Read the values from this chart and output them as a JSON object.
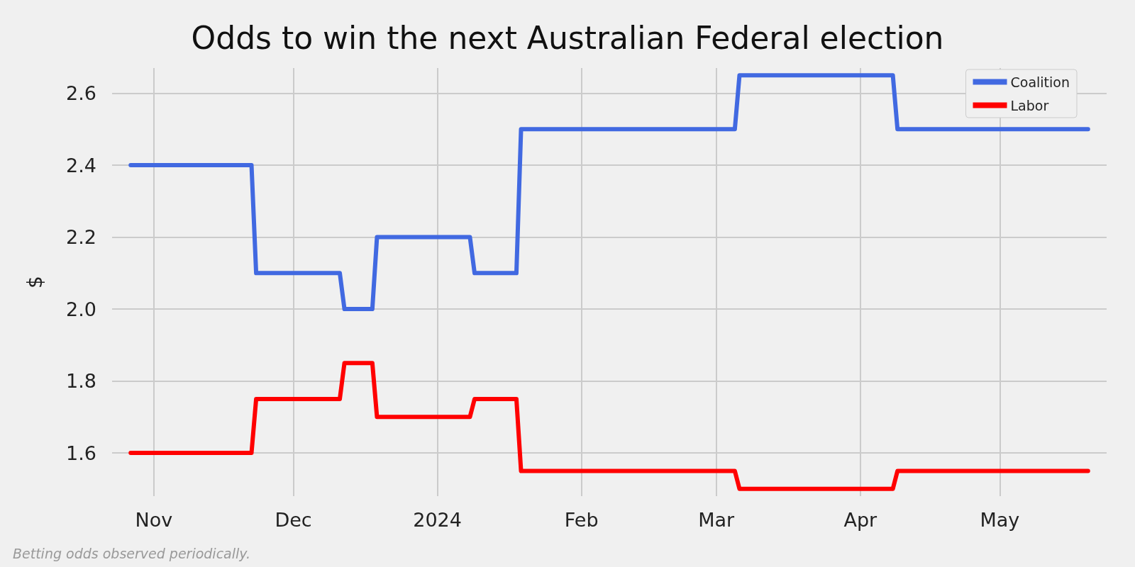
{
  "chart_data": {
    "type": "line",
    "title": "Odds to win the next Australian Federal election",
    "ylabel": "$",
    "x": [
      "2023-10-27",
      "2023-11-22",
      "2023-11-23",
      "2023-12-11",
      "2023-12-12",
      "2023-12-18",
      "2023-12-19",
      "2024-01-08",
      "2024-01-09",
      "2024-01-18",
      "2024-01-19",
      "2024-03-05",
      "2024-03-06",
      "2024-04-08",
      "2024-04-09",
      "2024-05-20"
    ],
    "series": [
      {
        "name": "Coalition",
        "color": "#4169e1",
        "values": [
          2.4,
          2.4,
          2.1,
          2.1,
          2.0,
          2.0,
          2.2,
          2.2,
          2.1,
          2.1,
          2.5,
          2.5,
          2.65,
          2.65,
          2.5,
          2.5
        ]
      },
      {
        "name": "Labor",
        "color": "#ff0000",
        "values": [
          1.6,
          1.6,
          1.75,
          1.75,
          1.85,
          1.85,
          1.7,
          1.7,
          1.75,
          1.75,
          1.55,
          1.55,
          1.5,
          1.5,
          1.55,
          1.55
        ]
      }
    ],
    "xlim": [
      "2023-10-23",
      "2024-05-24"
    ],
    "xticks": [
      {
        "value": "2023-11-01",
        "label": "Nov"
      },
      {
        "value": "2023-12-01",
        "label": "Dec"
      },
      {
        "value": "2024-01-01",
        "label": "2024"
      },
      {
        "value": "2024-02-01",
        "label": "Feb"
      },
      {
        "value": "2024-03-01",
        "label": "Mar"
      },
      {
        "value": "2024-04-01",
        "label": "Apr"
      },
      {
        "value": "2024-05-01",
        "label": "May"
      }
    ],
    "ylim": [
      1.48,
      2.67
    ],
    "yticks": [
      1.6,
      1.8,
      {
        "value": 2,
        "label": "2.0"
      },
      2.2,
      2.4,
      2.6
    ],
    "grid": true,
    "legend": "top right",
    "marker": "none",
    "line_style": "solid",
    "annotations": [
      "Betting odds observed periodically."
    ]
  }
}
